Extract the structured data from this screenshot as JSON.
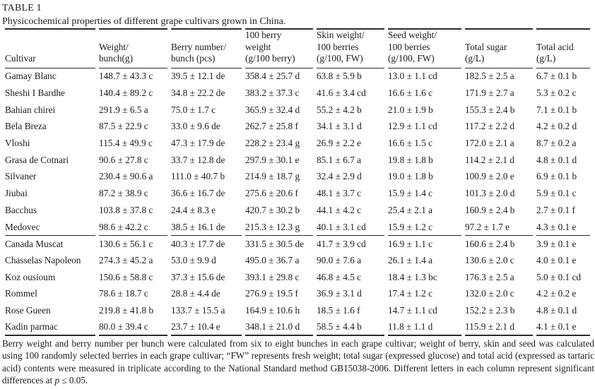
{
  "table": {
    "label": "TABLE 1",
    "caption": "Physicochemical properties of different grape cultivars grown in China.",
    "headers": [
      {
        "lines": [
          "Cultivar"
        ]
      },
      {
        "lines": [
          "Weight/",
          "bunch(g)"
        ]
      },
      {
        "lines": [
          "Berry number/",
          "bunch (pcs)"
        ]
      },
      {
        "lines": [
          "100 berry",
          "weight",
          "(g/100 berry)"
        ]
      },
      {
        "lines": [
          "Skin weight/",
          "100 berries",
          "(g/100, FW)"
        ]
      },
      {
        "lines": [
          "Seed weight/",
          "100 berries",
          "(g/100, FW)"
        ]
      },
      {
        "lines": [
          "Total sugar",
          "(g/L)"
        ]
      },
      {
        "lines": [
          "Total acid",
          "(g/L)"
        ]
      }
    ],
    "group1": [
      [
        "Gamay Blanc",
        "148.7 ± 43.3 c",
        "39.5 ± 12.1 de",
        "358.4 ± 25.7 d",
        "63.8 ± 5.9 b",
        "13.0 ± 1.1 cd",
        "182.5 ± 2.5 a",
        "6.7 ± 0.1 b"
      ],
      [
        "Sheshi I Bardhe",
        "140.4 ± 89.2 c",
        "34.8 ± 22.2 de",
        "383.2 ± 37.3 c",
        "41.6 ± 3.4 cd",
        "16.6 ± 1.6 c",
        "171.9 ± 2.7 a",
        "5.3 ± 0.2 c"
      ],
      [
        "Bahian chirei",
        "291.9 ± 6.5 a",
        "75.0 ± 1.7 c",
        "365.9 ± 32.4 d",
        "55.2 ± 4.2 b",
        "21.0 ± 1.9 b",
        "155.3 ± 2.4 b",
        "7.1 ± 0.1 b"
      ],
      [
        "Bela Breza",
        "87.5 ± 22.9 c",
        "33.0 ± 9.6 de",
        "262.7 ± 25.8 f",
        "34.1 ± 3.1 d",
        "12.9 ± 1.1 cd",
        "117.2 ± 2.2 d",
        "4.2 ± 0.2 d"
      ],
      [
        "Vloshi",
        "115.4 ± 49.9 c",
        "47.3 ± 17.9 de",
        "228.2 ± 23.4 g",
        "26.9 ± 2.2 e",
        "16.6 ± 1.5 c",
        "172.0 ± 2.1 a",
        "8.7 ± 0.2 a"
      ],
      [
        "Grasa de Cotnari",
        "90.6 ± 27.8 c",
        "33.7 ± 12.8 de",
        "297.9 ± 30.1 e",
        "85.1 ± 6.7 a",
        "19.8 ± 1.8 b",
        "114.2 ± 2.1 d",
        "4.8 ± 0.1 d"
      ],
      [
        "Silvaner",
        "230.4 ± 90.6 a",
        "111.0 ± 40.7 b",
        "214.9 ± 18.7 g",
        "32.4 ± 2.9 d",
        "19.0 ± 1.8 b",
        "100.9 ± 2.0 e",
        "6.9 ± 0.1 b"
      ],
      [
        "Jiubai",
        "87.2 ± 38.9 c",
        "36.6 ± 16.7 de",
        "275.6 ± 20.6 f",
        "48.1 ± 3.7 c",
        "15.9 ± 1.4 c",
        "101.3 ± 2.0 d",
        "5.9 ± 0.1 c"
      ],
      [
        "Bacchus",
        "103.8 ± 37.8 c",
        "24.4 ± 8.3 e",
        "420.7 ± 30.2 b",
        "44.1 ± 4.2 c",
        "25.4 ± 2.1 a",
        "160.9 ± 2.4 b",
        "2.7 ± 0.1 f"
      ],
      [
        "Medovec",
        "98.6 ± 42.2 c",
        "38.5 ± 16.1 de",
        "215.3 ± 12.3 g",
        "40.1 ± 3.1 cd",
        "15.9 ± 1.2 c",
        "97.2 ± 1.7 e",
        "4.3 ± 0.1 e"
      ]
    ],
    "group2": [
      [
        "Canada Muscat",
        "130.6 ± 56.1 c",
        "40.3 ± 17.7 de",
        "331.5 ± 30.5 de",
        "41.7 ± 3.9 cd",
        "16.9 ± 1.1 c",
        "160.6 ± 2.4 b",
        "3.9 ± 0.1 e"
      ],
      [
        "Chasselas Napoleon",
        "274.3 ± 45.2 a",
        "53.0 ± 9.9 d",
        "495.0 ± 36.7 a",
        "90.0 ± 7.6 a",
        "26.1 ± 1.4 a",
        "130.6 ± 2.0 c",
        "4.0 ± 0.1 e"
      ],
      [
        "Koz ousioum",
        "150.6 ± 58.8 c",
        "37.3 ± 15.6 de",
        "393.1 ± 29.8 c",
        "46.8 ± 4.5 c",
        "18.4 ± 1.3 bc",
        "176.3 ± 2.5 a",
        "5.0 ± 0.1 cd"
      ],
      [
        "Rommel",
        "78.6 ± 18.7 c",
        "28.8 ± 4.4 de",
        "276.9 ± 19.5 f",
        "36.9 ± 3.1 d",
        "17.4 ± 1.2 c",
        "132.0 ± 2.0 c",
        "4.2 ± 0.2 e"
      ],
      [
        "Rose Gueen",
        "219.8 ± 41.8 b",
        "133.7 ± 15.5 a",
        "164.9 ± 10.6 h",
        "18.5 ± 1.6 f",
        "14.7 ± 1.1 cd",
        "152.2 ± 2.3 b",
        "4.8 ± 0.1 d"
      ],
      [
        "Kadin parmac",
        "80.0 ± 39.4 c",
        "23.7 ± 10.4 e",
        "348.1 ± 21.0 d",
        "58.5 ± 4.4 b",
        "11.8 ± 1.1 d",
        "115.9 ± 2.1 d",
        "4.1 ± 0.1 e"
      ]
    ],
    "footnote": {
      "before_p": "Berry weight and berry number per bunch were calculated from six to eight bunches in each grape cultivar; weight of berry, skin and seed was calculated using 100 randomly selected berries in each grape cultivar; “FW” represents fresh weight; total sugar (expressed glucose) and total acid (expressed as tartaric acid) contents were measured in triplicate according to the National Standard method GB15038-2006. Different letters in each column represent significant differences at ",
      "p_symbol": "p",
      "after_p": " ≤ 0.05."
    }
  }
}
